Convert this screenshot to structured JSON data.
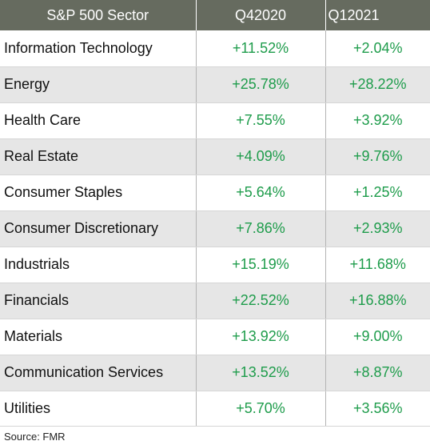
{
  "table": {
    "headers": [
      "S&P 500 Sector",
      "Q42020",
      "Q12021"
    ],
    "rows": [
      {
        "sector": "Information Technology",
        "q42020": "+11.52%",
        "q12021": "+2.04%"
      },
      {
        "sector": "Energy",
        "q42020": "+25.78%",
        "q12021": "+28.22%"
      },
      {
        "sector": "Health Care",
        "q42020": "+7.55%",
        "q12021": "+3.92%"
      },
      {
        "sector": "Real Estate",
        "q42020": "+4.09%",
        "q12021": "+9.76%"
      },
      {
        "sector": "Consumer Staples",
        "q42020": "+5.64%",
        "q12021": "+1.25%"
      },
      {
        "sector": "Consumer Discretionary",
        "q42020": "+7.86%",
        "q12021": "+2.93%"
      },
      {
        "sector": "Industrials",
        "q42020": "+15.19%",
        "q12021": "+11.68%"
      },
      {
        "sector": "Financials",
        "q42020": "+22.52%",
        "q12021": "+16.88%"
      },
      {
        "sector": "Materials",
        "q42020": "+13.92%",
        "q12021": "+9.00%"
      },
      {
        "sector": "Communication Services",
        "q42020": "+13.52%",
        "q12021": "+8.87%"
      },
      {
        "sector": "Utilities",
        "q42020": "+5.70%",
        "q12021": "+3.56%"
      }
    ]
  },
  "source": "Source: FMR",
  "colors": {
    "header_bg": "#666b5f",
    "value_green": "#1e9c4b",
    "stripe": "#e6e6e6"
  }
}
